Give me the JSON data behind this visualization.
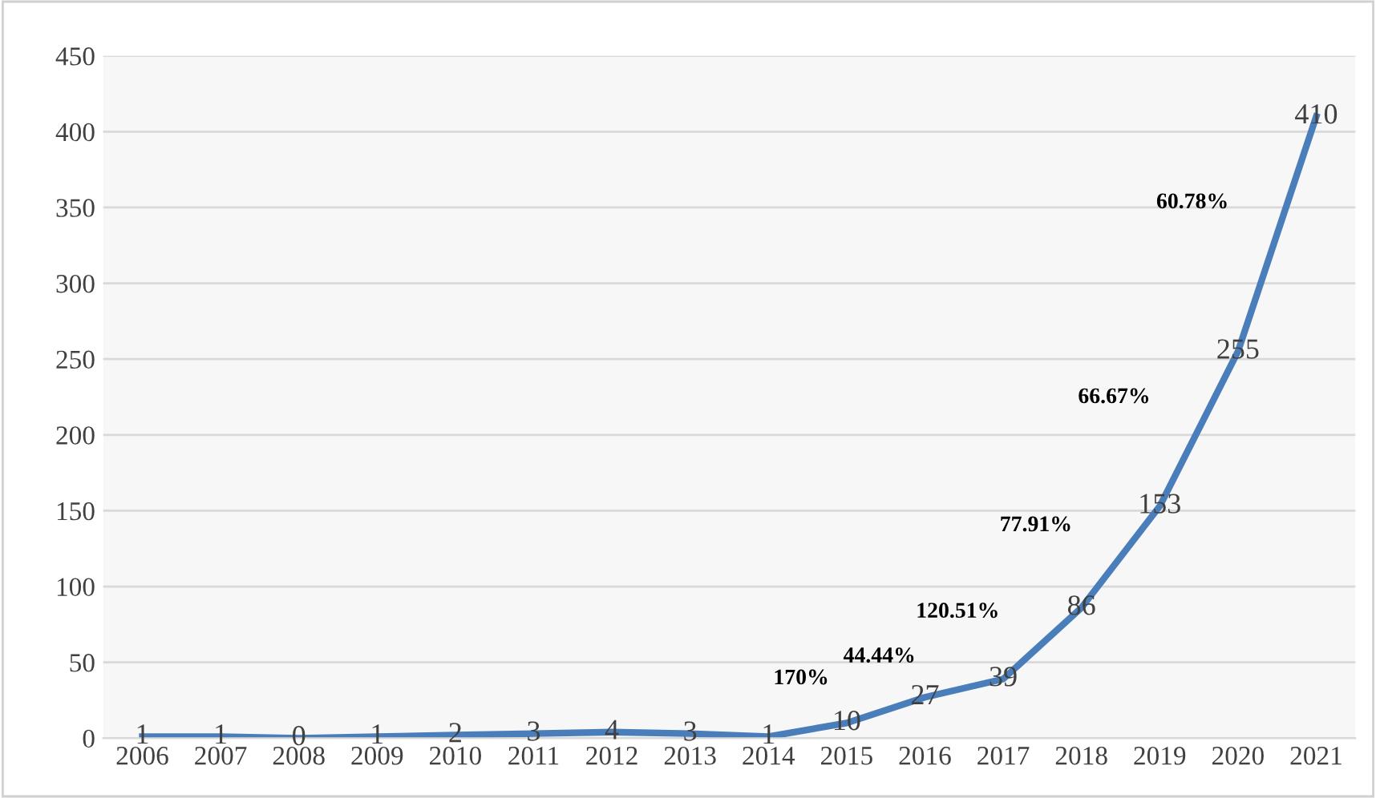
{
  "chart_data": {
    "type": "line",
    "categories": [
      "2006",
      "2007",
      "2008",
      "2009",
      "2010",
      "2011",
      "2012",
      "2013",
      "2014",
      "2015",
      "2016",
      "2017",
      "2018",
      "2019",
      "2020",
      "2021"
    ],
    "series": [
      {
        "color": "#4a7ebb",
        "values": [
          1,
          1,
          0,
          1,
          2,
          3,
          4,
          3,
          1,
          10,
          27,
          39,
          86,
          153,
          255,
          410
        ]
      }
    ],
    "ylim": [
      0,
      450
    ],
    "yticks": [
      0,
      50,
      100,
      150,
      200,
      250,
      300,
      350,
      400,
      450
    ],
    "grid": "y",
    "legend": false,
    "marker": "none",
    "line_style": "solid",
    "data_labels": true,
    "annotations": [
      "170%",
      "44.44%",
      "120.51%",
      "77.91%",
      "66.67%",
      "60.78%"
    ]
  }
}
